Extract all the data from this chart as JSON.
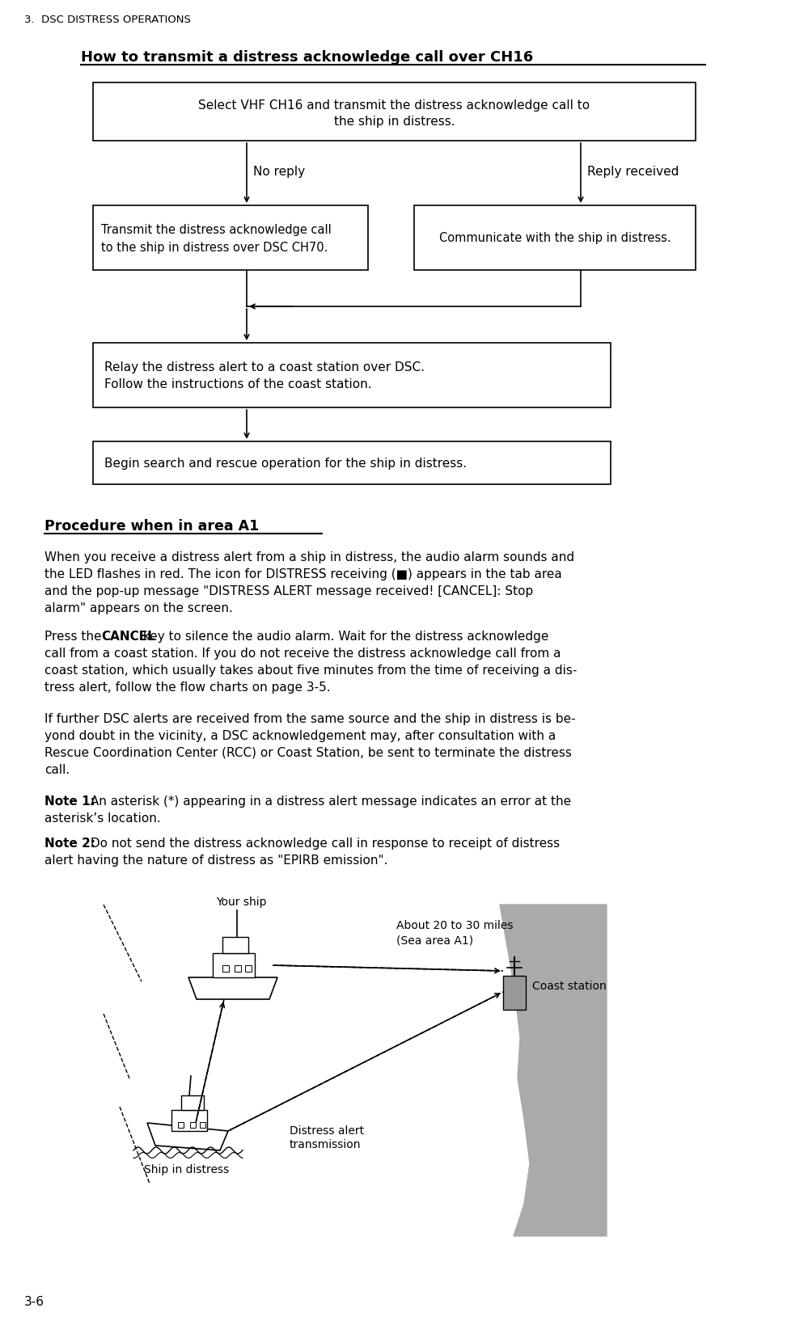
{
  "page_title": "3.  DSC DISTRESS OPERATIONS",
  "section_title": "How to transmit a distress acknowledge call over CH16",
  "section2_title": "Procedure when in area A1",
  "no_reply_label": "No reply",
  "reply_received_label": "Reply received",
  "para1_lines": [
    "When you receive a distress alert from a ship in distress, the audio alarm sounds and",
    "the LED flashes in red. The icon for DISTRESS receiving (■) appears in the tab area",
    "and the pop-up message \"DISTRESS ALERT message received! [CANCEL]: Stop",
    "alarm\" appears on the screen."
  ],
  "para2_lines": [
    [
      [
        "Press the ",
        false
      ],
      [
        "CANCEL",
        true
      ],
      [
        " key to silence the audio alarm. Wait for the distress acknowledge",
        false
      ]
    ],
    [
      [
        "call from a coast station. If you do not receive the distress acknowledge call from a",
        false
      ]
    ],
    [
      [
        "coast station, which usually takes about five minutes from the time of receiving a dis-",
        false
      ]
    ],
    [
      [
        "tress alert, follow the flow charts on page 3-5.",
        false
      ]
    ]
  ],
  "para3_lines": [
    "If further DSC alerts are received from the same source and the ship in distress is be-",
    "yond doubt in the vicinity, a DSC acknowledgement may, after consultation with a",
    "Rescue Coordination Center (RCC) or Coast Station, be sent to terminate the distress",
    "call."
  ],
  "note1_bold": "Note 1:",
  "note1_line1": " An asterisk (*) appearing in a distress alert message indicates an error at the",
  "note1_line2": "asterisk’s location.",
  "note2_bold": "Note 2:",
  "note2_line1": " Do not send the distress acknowledge call in response to receipt of distress",
  "note2_line2": "alert having the nature of distress as \"EPIRB emission\".",
  "img_label_your_ship": "Your ship",
  "img_label_coast_station": "Coast station",
  "img_label_distress_alert": "Distress alert\ntransmission",
  "img_label_ship_in_distress": "Ship in distress",
  "img_label_distance": "About 20 to 30 miles\n(Sea area A1)",
  "page_number": "3-6",
  "bg_color": "#ffffff",
  "text_color": "#000000",
  "box_border_color": "#000000",
  "coast_color": "#aaaaaa",
  "box1_text1": "Select VHF CH16 and transmit the distress acknowledge call to",
  "box1_text2": "the ship in distress.",
  "box2l_text1": "Transmit the distress acknowledge call",
  "box2l_text2": "to the ship in distress over DSC CH70.",
  "box2r_text": "Communicate with the ship in distress.",
  "box3_text1": "Relay the distress alert to a coast station over DSC.",
  "box3_text2": "Follow the instructions of the coast station.",
  "box4_text": "Begin search and rescue operation for the ship in distress."
}
